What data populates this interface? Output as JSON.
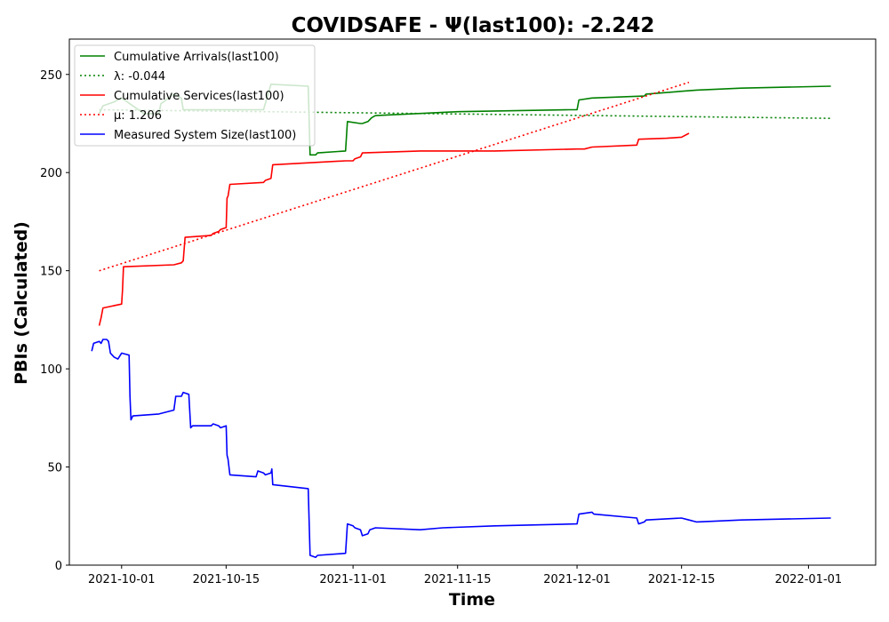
{
  "chart_data": {
    "type": "line",
    "title": "COVIDSAFE -  Ψ(last100): -2.242",
    "xlabel": "Time",
    "ylabel": "PBIs (Calculated)",
    "x_type": "date",
    "xlim": [
      "2021-09-24",
      "2022-01-10"
    ],
    "ylim": [
      0,
      268
    ],
    "x_ticks": [
      "2021-10-01",
      "2021-10-15",
      "2021-11-01",
      "2021-11-15",
      "2021-12-01",
      "2021-12-15",
      "2022-01-01"
    ],
    "y_ticks": [
      0,
      50,
      100,
      150,
      200,
      250
    ],
    "grid": false,
    "legend_position": "top-left",
    "series": [
      {
        "name": "Cumulative Arrivals(last100)",
        "style": "solid",
        "color": "#008000",
        "points": [
          [
            "2021-09-28",
            230
          ],
          [
            "2021-09-28T12:00",
            234
          ],
          [
            "2021-09-30",
            236
          ],
          [
            "2021-10-01",
            238
          ],
          [
            "2021-10-04",
            230
          ],
          [
            "2021-10-06",
            230
          ],
          [
            "2021-10-06T06:00",
            235
          ],
          [
            "2021-10-08",
            240
          ],
          [
            "2021-10-09",
            238
          ],
          [
            "2021-10-09T06:00",
            232
          ],
          [
            "2021-10-20",
            232
          ],
          [
            "2021-10-21",
            245
          ],
          [
            "2021-10-26",
            244
          ],
          [
            "2021-10-26T06:00",
            209
          ],
          [
            "2021-10-27",
            209
          ],
          [
            "2021-10-27T06:00",
            210
          ],
          [
            "2021-10-31",
            211
          ],
          [
            "2021-10-31T06:00",
            226
          ],
          [
            "2021-11-02",
            225
          ],
          [
            "2021-11-02T06:00",
            225
          ],
          [
            "2021-11-03",
            226
          ],
          [
            "2021-11-03T12:00",
            228
          ],
          [
            "2021-11-04",
            229
          ],
          [
            "2021-11-15",
            231
          ],
          [
            "2021-11-30",
            232
          ],
          [
            "2021-12-01",
            232
          ],
          [
            "2021-12-01T06:00",
            237
          ],
          [
            "2021-12-03",
            238
          ],
          [
            "2021-12-10",
            239
          ],
          [
            "2021-12-10T06:00",
            240
          ],
          [
            "2021-12-17",
            242
          ],
          [
            "2021-12-23",
            243
          ],
          [
            "2022-01-04",
            244
          ]
        ]
      },
      {
        "name": "λ: -0.044",
        "style": "dotted",
        "color": "#008000",
        "points": [
          [
            "2021-09-28",
            232
          ],
          [
            "2022-01-04",
            227.6
          ]
        ]
      },
      {
        "name": "Cumulative Services(last100)",
        "style": "solid",
        "color": "#ff0000",
        "points": [
          [
            "2021-09-28",
            122
          ],
          [
            "2021-09-28T06:00",
            126
          ],
          [
            "2021-09-28T12:00",
            131
          ],
          [
            "2021-10-01",
            133
          ],
          [
            "2021-10-01T03:00",
            140
          ],
          [
            "2021-10-01T06:00",
            152
          ],
          [
            "2021-10-08",
            153
          ],
          [
            "2021-10-09",
            154
          ],
          [
            "2021-10-09T06:00",
            155
          ],
          [
            "2021-10-09T12:00",
            167
          ],
          [
            "2021-10-13",
            168
          ],
          [
            "2021-10-13T06:00",
            169
          ],
          [
            "2021-10-14",
            170
          ],
          [
            "2021-10-14T06:00",
            171
          ],
          [
            "2021-10-15",
            172
          ],
          [
            "2021-10-15T03:00",
            187
          ],
          [
            "2021-10-15T06:00",
            188
          ],
          [
            "2021-10-15T12:00",
            194
          ],
          [
            "2021-10-20",
            195
          ],
          [
            "2021-10-20T06:00",
            196
          ],
          [
            "2021-10-21",
            197
          ],
          [
            "2021-10-21T06:00",
            204
          ],
          [
            "2021-10-31",
            206
          ],
          [
            "2021-11-01",
            206
          ],
          [
            "2021-11-01T06:00",
            207
          ],
          [
            "2021-11-02",
            208
          ],
          [
            "2021-11-02T06:00",
            210
          ],
          [
            "2021-11-10",
            211
          ],
          [
            "2021-11-20",
            211
          ],
          [
            "2021-12-01",
            212
          ],
          [
            "2021-12-02",
            212
          ],
          [
            "2021-12-03",
            213
          ],
          [
            "2021-12-09",
            214
          ],
          [
            "2021-12-09T06:00",
            217
          ],
          [
            "2021-12-13",
            217.5
          ],
          [
            "2021-12-15",
            218
          ],
          [
            "2021-12-16",
            220
          ]
        ]
      },
      {
        "name": "μ: 1.206",
        "style": "dotted",
        "color": "#ff0000",
        "points": [
          [
            "2021-09-28",
            150
          ],
          [
            "2021-12-16",
            246
          ]
        ]
      },
      {
        "name": "Measured System Size(last100)",
        "style": "solid",
        "color": "#0000ff",
        "points": [
          [
            "2021-09-27",
            109
          ],
          [
            "2021-09-27T06:00",
            113
          ],
          [
            "2021-09-28",
            114
          ],
          [
            "2021-09-28T06:00",
            113
          ],
          [
            "2021-09-28T12:00",
            115
          ],
          [
            "2021-09-29",
            115
          ],
          [
            "2021-09-29T06:00",
            114
          ],
          [
            "2021-09-29T12:00",
            108
          ],
          [
            "2021-09-30",
            106
          ],
          [
            "2021-09-30T12:00",
            105
          ],
          [
            "2021-10-01",
            108
          ],
          [
            "2021-10-02",
            107
          ],
          [
            "2021-10-02T03:00",
            86
          ],
          [
            "2021-10-02T06:00",
            74
          ],
          [
            "2021-10-02T12:00",
            76
          ],
          [
            "2021-10-06",
            77
          ],
          [
            "2021-10-08",
            79
          ],
          [
            "2021-10-08T06:00",
            86
          ],
          [
            "2021-10-09",
            86
          ],
          [
            "2021-10-09T06:00",
            88
          ],
          [
            "2021-10-10",
            87
          ],
          [
            "2021-10-10T06:00",
            70
          ],
          [
            "2021-10-10T12:00",
            71
          ],
          [
            "2021-10-13",
            71
          ],
          [
            "2021-10-13T06:00",
            72
          ],
          [
            "2021-10-14",
            71
          ],
          [
            "2021-10-14T06:00",
            70
          ],
          [
            "2021-10-15",
            71
          ],
          [
            "2021-10-15T03:00",
            56
          ],
          [
            "2021-10-15T06:00",
            54
          ],
          [
            "2021-10-15T12:00",
            46
          ],
          [
            "2021-10-19",
            45
          ],
          [
            "2021-10-19T06:00",
            48
          ],
          [
            "2021-10-20",
            47
          ],
          [
            "2021-10-20T06:00",
            46
          ],
          [
            "2021-10-21",
            47
          ],
          [
            "2021-10-21T03:00",
            49
          ],
          [
            "2021-10-21T06:00",
            41
          ],
          [
            "2021-10-26",
            39
          ],
          [
            "2021-10-26T06:00",
            5
          ],
          [
            "2021-10-27",
            4
          ],
          [
            "2021-10-27T06:00",
            5
          ],
          [
            "2021-10-31",
            6
          ],
          [
            "2021-10-31T06:00",
            21
          ],
          [
            "2021-11-01",
            20
          ],
          [
            "2021-11-01T06:00",
            19
          ],
          [
            "2021-11-02",
            18
          ],
          [
            "2021-11-02T06:00",
            15
          ],
          [
            "2021-11-03",
            16
          ],
          [
            "2021-11-03T06:00",
            18
          ],
          [
            "2021-11-04",
            19
          ],
          [
            "2021-11-10",
            18
          ],
          [
            "2021-11-13",
            19
          ],
          [
            "2021-11-20",
            20
          ],
          [
            "2021-12-01",
            21
          ],
          [
            "2021-12-01T06:00",
            26
          ],
          [
            "2021-12-03",
            27
          ],
          [
            "2021-12-03T06:00",
            26
          ],
          [
            "2021-12-09",
            24
          ],
          [
            "2021-12-09T06:00",
            21
          ],
          [
            "2021-12-10",
            22
          ],
          [
            "2021-12-10T06:00",
            23
          ],
          [
            "2021-12-15",
            24
          ],
          [
            "2021-12-16",
            23
          ],
          [
            "2021-12-17",
            22
          ],
          [
            "2021-12-23",
            23
          ],
          [
            "2022-01-04",
            24
          ]
        ]
      }
    ]
  }
}
